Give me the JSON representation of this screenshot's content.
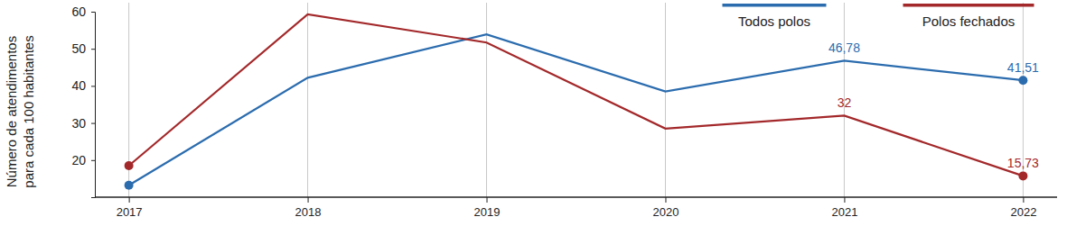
{
  "chart_data": {
    "type": "line",
    "y_label": [
      "Número de atendimentos",
      "para cada 100 habitantes"
    ],
    "categories": [
      "2017",
      "2018",
      "2019",
      "2020",
      "2021",
      "2022"
    ],
    "series": [
      {
        "name": "Todos polos",
        "color": "#2b6cae",
        "values": [
          13.2,
          42.2,
          53.9,
          38.5,
          46.78,
          41.51
        ],
        "value_labels": [
          null,
          null,
          null,
          null,
          "46,78",
          "41,51"
        ],
        "marker": "ends"
      },
      {
        "name": "Polos fechados",
        "color": "#a3282a",
        "values": [
          18.5,
          59.3,
          51.7,
          28.5,
          32,
          15.73
        ],
        "value_labels": [
          null,
          null,
          null,
          null,
          "32",
          "15,73"
        ],
        "marker": "ends"
      }
    ],
    "ylim": [
      10,
      60
    ],
    "yticks": [
      20,
      30,
      40,
      50,
      60
    ],
    "grid": "x",
    "legend": "top-right",
    "data_labels": true
  }
}
